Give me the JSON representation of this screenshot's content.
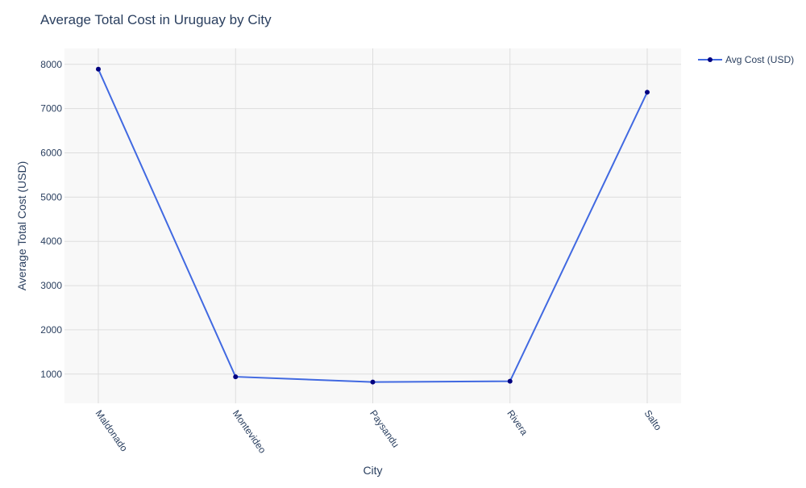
{
  "chart_data": {
    "type": "line",
    "title": "Average Total Cost in Uruguay by City",
    "xlabel": "City",
    "ylabel": "Average Total Cost (USD)",
    "categories": [
      "Maldonado",
      "Montevideo",
      "Paysandu",
      "Rivera",
      "Salto"
    ],
    "series": [
      {
        "name": "Avg Cost (USD)",
        "values": [
          7890,
          940,
          820,
          840,
          7370
        ],
        "line_color": "#4169e1",
        "marker_color": "#000080"
      }
    ],
    "yticks": [
      1000,
      2000,
      3000,
      4000,
      5000,
      6000,
      7000,
      8000
    ],
    "ylim": [
      340,
      8360
    ],
    "grid": true,
    "legend_position": "top-right",
    "plot_background": "#f8f8f8",
    "grid_color": "#dddddd"
  }
}
